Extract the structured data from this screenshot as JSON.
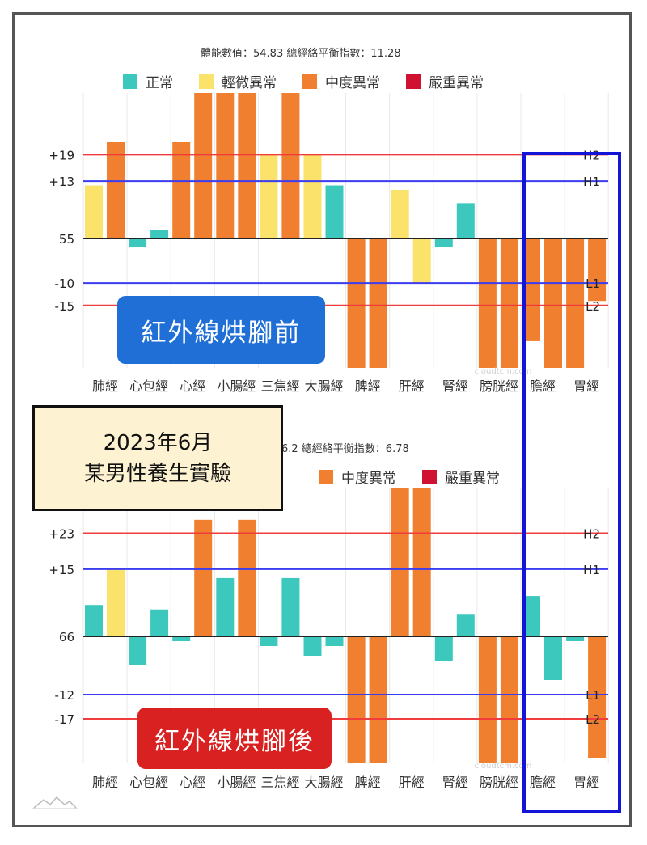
{
  "caption": {
    "line1": "2023年6月",
    "line2": "某男性養生實驗"
  },
  "legend": [
    {
      "label": "正常",
      "color": "#3cc8bd"
    },
    {
      "label": "輕微異常",
      "color": "#fbe26b"
    },
    {
      "label": "中度異常",
      "color": "#f07f2f"
    },
    {
      "label": "嚴重異常",
      "color": "#cf1232"
    }
  ],
  "chart_data": [
    {
      "type": "bar",
      "title": "體能數值：54.83 總經絡平衡指數：11.28",
      "badge": "紅外線烘腳前",
      "categories": [
        "肺經",
        "心包經",
        "心經",
        "小腸經",
        "三焦經",
        "大腸經",
        "脾經",
        "肝經",
        "腎經",
        "膀胱經",
        "膽經",
        "胃經"
      ],
      "baseline_label": "55",
      "ylim": [
        -29,
        33
      ],
      "reference_lines": [
        {
          "value": 19,
          "label": "+19",
          "tag": "H2",
          "color": "#f03c3c"
        },
        {
          "value": 13,
          "label": "+13",
          "tag": "H1",
          "color": "#3c3cf0"
        },
        {
          "value": -10,
          "label": "-10",
          "tag": "L1",
          "color": "#3c3cf0"
        },
        {
          "value": -15,
          "label": "-15",
          "tag": "L2",
          "color": "#f03c3c"
        }
      ],
      "series": [
        {
          "values": [
            12,
            -2,
            22,
            33,
            19,
            19,
            -29,
            11,
            -2,
            -29,
            -23,
            -29
          ],
          "levels": [
            "mild",
            "normal",
            "moderate",
            "moderate",
            "mild",
            "mild",
            "moderate",
            "mild",
            "normal",
            "moderate",
            "moderate",
            "moderate"
          ]
        },
        {
          "values": [
            22,
            2,
            33,
            33,
            33,
            12,
            -29,
            -10,
            8,
            -29,
            -29,
            -14
          ],
          "levels": [
            "moderate",
            "normal",
            "moderate",
            "moderate",
            "moderate",
            "normal",
            "moderate",
            "mild",
            "normal",
            "moderate",
            "moderate",
            "moderate"
          ]
        }
      ],
      "watermark": "cloudtcm.com"
    },
    {
      "type": "bar",
      "title": "6.2 總經絡平衡指數：6.78",
      "badge": "紅外線烘腳後",
      "categories": [
        "肺經",
        "心包經",
        "心經",
        "小腸經",
        "三焦經",
        "大腸經",
        "脾經",
        "肝經",
        "腎經",
        "膀胱經",
        "膽經",
        "胃經"
      ],
      "baseline_label": "66",
      "ylim": [
        -26,
        33
      ],
      "reference_lines": [
        {
          "value": 23,
          "label": "+23",
          "tag": "H2",
          "color": "#f03c3c"
        },
        {
          "value": 15,
          "label": "+15",
          "tag": "H1",
          "color": "#3c3cf0"
        },
        {
          "value": -12,
          "label": "-12",
          "tag": "L1",
          "color": "#3c3cf0"
        },
        {
          "value": -17,
          "label": "-17",
          "tag": "L2",
          "color": "#f03c3c"
        }
      ],
      "series": [
        {
          "values": [
            7,
            -6,
            -1,
            13,
            -2,
            -4,
            -26,
            33,
            -5,
            -26,
            9,
            -1
          ],
          "levels": [
            "normal",
            "normal",
            "normal",
            "normal",
            "normal",
            "normal",
            "moderate",
            "moderate",
            "normal",
            "moderate",
            "normal",
            "normal"
          ]
        },
        {
          "values": [
            15,
            6,
            26,
            26,
            13,
            -2,
            -26,
            33,
            5,
            -26,
            -9,
            -25
          ],
          "levels": [
            "mild",
            "normal",
            "moderate",
            "moderate",
            "normal",
            "normal",
            "moderate",
            "moderate",
            "normal",
            "moderate",
            "normal",
            "moderate"
          ]
        }
      ],
      "watermark": "cloudtcm.com"
    }
  ]
}
